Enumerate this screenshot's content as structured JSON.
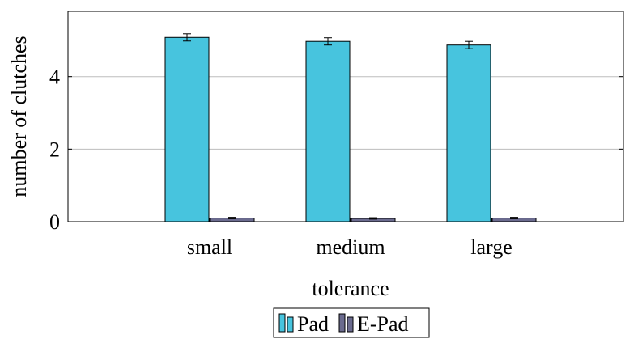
{
  "chart_data": {
    "type": "bar",
    "title": "",
    "xlabel": "tolerance",
    "ylabel": "number of clutches",
    "categories": [
      "small",
      "medium",
      "large"
    ],
    "ylim": [
      0,
      5.8
    ],
    "yticks": [
      0,
      2,
      4
    ],
    "grid": true,
    "legend_placement": "bottom-center",
    "series": [
      {
        "name": "Pad",
        "color": "#47c4de",
        "values": [
          5.08,
          4.97,
          4.87
        ],
        "error": [
          0.1,
          0.1,
          0.1
        ]
      },
      {
        "name": "E-Pad",
        "color": "#6b6b8f",
        "values": [
          0.1,
          0.09,
          0.1
        ],
        "error": [
          0.02,
          0.02,
          0.02
        ]
      }
    ]
  }
}
